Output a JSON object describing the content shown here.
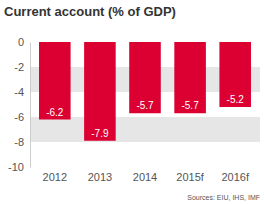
{
  "chart_data": {
    "type": "bar",
    "title": "Current account (% of GDP)",
    "source": "Sources: EIU, IHS, IMF",
    "categories": [
      "2012",
      "2013",
      "2014",
      "2015f",
      "2016f"
    ],
    "values": [
      -6.2,
      -7.9,
      -5.7,
      -5.7,
      -5.2
    ],
    "color": "#dc0032",
    "ylim": [
      0,
      -10
    ],
    "yticks": [
      0,
      -2,
      -4,
      -6,
      -8,
      -10
    ],
    "grid": true,
    "data_labels": true
  }
}
